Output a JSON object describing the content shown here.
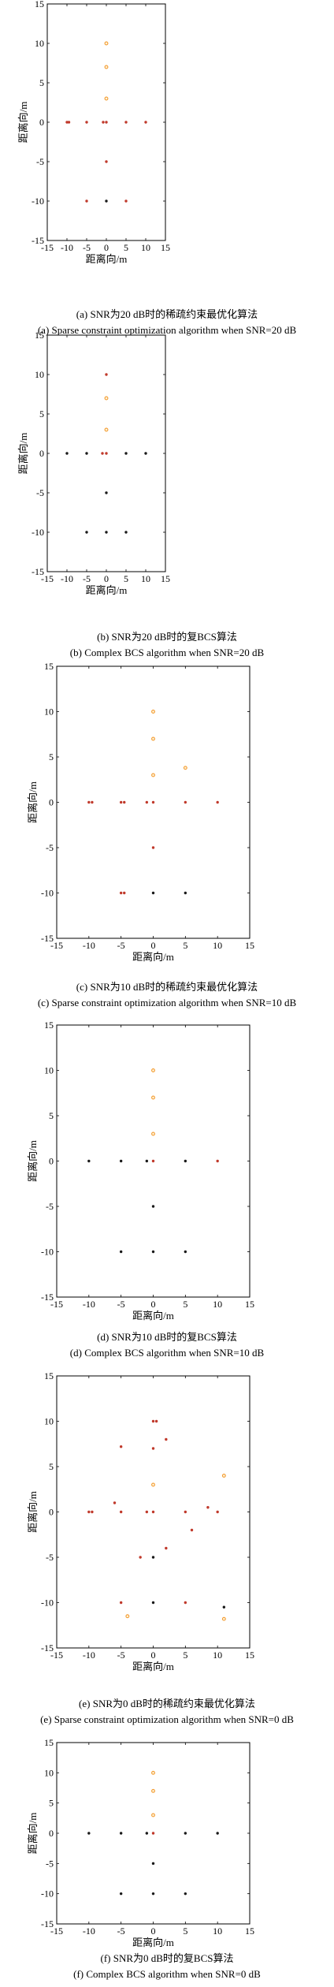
{
  "figure_panels": [
    {
      "caption_cn": "(a) SNR为20 dB时的稀疏约束最优化算法",
      "caption_en": "(a) Sparse constraint optimization algorithm when SNR=20 dB"
    },
    {
      "caption_cn": "(b) SNR为20 dB时的复BCS算法",
      "caption_en": "(b) Complex BCS algorithm when SNR=20 dB"
    },
    {
      "caption_cn": "(c) SNR为10 dB时的稀疏约束最优化算法",
      "caption_en": "(c) Sparse constraint optimization algorithm when SNR=10 dB"
    },
    {
      "caption_cn": "(d) SNR为10 dB时的复BCS算法",
      "caption_en": "(d) Complex BCS algorithm when SNR=10 dB"
    },
    {
      "caption_cn": "(e) SNR为0 dB时的稀疏约束最优化算法",
      "caption_en": "(e) Sparse constraint optimization algorithm when SNR=0 dB"
    },
    {
      "caption_cn": "(f) SNR为0 dB时的复BCS算法",
      "caption_en": "(f) Complex BCS algorithm when SNR=0 dB"
    }
  ],
  "colors": {
    "bright": "#f39c33",
    "mid": "#c0392b",
    "dark": "#1a1a1a",
    "axis": "#000000"
  },
  "chart_data": [
    {
      "type": "scatter",
      "title": "",
      "xlabel": "距离向/m",
      "ylabel": "距离向/m",
      "xlim": [
        -15,
        15
      ],
      "ylim": [
        -15,
        15
      ],
      "xticks": [
        -15,
        -10,
        -5,
        0,
        5,
        10,
        15
      ],
      "yticks": [
        -15,
        -10,
        -5,
        0,
        5,
        10,
        15
      ],
      "grid": false,
      "points": [
        {
          "x": 0,
          "y": 10,
          "level": "bright"
        },
        {
          "x": 0,
          "y": 7,
          "level": "bright"
        },
        {
          "x": 0,
          "y": 3,
          "level": "bright"
        },
        {
          "x": -10,
          "y": 0,
          "level": "mid"
        },
        {
          "x": -9.5,
          "y": 0,
          "level": "mid"
        },
        {
          "x": -5,
          "y": 0,
          "level": "mid"
        },
        {
          "x": -0.8,
          "y": 0,
          "level": "mid"
        },
        {
          "x": 0,
          "y": 0,
          "level": "mid"
        },
        {
          "x": 5,
          "y": 0,
          "level": "mid"
        },
        {
          "x": 10,
          "y": 0,
          "level": "mid"
        },
        {
          "x": 0,
          "y": -5,
          "level": "mid"
        },
        {
          "x": -5,
          "y": -10,
          "level": "mid"
        },
        {
          "x": 0,
          "y": -10,
          "level": "dark"
        },
        {
          "x": 5,
          "y": -10,
          "level": "mid"
        }
      ]
    },
    {
      "type": "scatter",
      "title": "",
      "xlabel": "距离向/m",
      "ylabel": "距离向/m",
      "xlim": [
        -15,
        15
      ],
      "ylim": [
        -15,
        15
      ],
      "xticks": [
        -15,
        -10,
        -5,
        0,
        5,
        10,
        15
      ],
      "yticks": [
        -15,
        -10,
        -5,
        0,
        5,
        10,
        15
      ],
      "grid": false,
      "points": [
        {
          "x": 0,
          "y": 10,
          "level": "mid"
        },
        {
          "x": 0,
          "y": 7,
          "level": "bright"
        },
        {
          "x": 0,
          "y": 3,
          "level": "bright"
        },
        {
          "x": -10,
          "y": 0,
          "level": "dark"
        },
        {
          "x": -5,
          "y": 0,
          "level": "dark"
        },
        {
          "x": -1,
          "y": 0,
          "level": "mid"
        },
        {
          "x": 0,
          "y": 0,
          "level": "mid"
        },
        {
          "x": 5,
          "y": 0,
          "level": "dark"
        },
        {
          "x": 10,
          "y": 0,
          "level": "dark"
        },
        {
          "x": 0,
          "y": -5,
          "level": "dark"
        },
        {
          "x": -5,
          "y": -10,
          "level": "dark"
        },
        {
          "x": 0,
          "y": -10,
          "level": "dark"
        },
        {
          "x": 5,
          "y": -10,
          "level": "dark"
        }
      ]
    },
    {
      "type": "scatter",
      "title": "",
      "xlabel": "距离向/m",
      "ylabel": "距离向/m",
      "xlim": [
        -15,
        15
      ],
      "ylim": [
        -15,
        15
      ],
      "xticks": [
        -15,
        -10,
        -5,
        0,
        5,
        10,
        15
      ],
      "yticks": [
        -15,
        -10,
        -5,
        0,
        5,
        10,
        15
      ],
      "grid": false,
      "points": [
        {
          "x": 0,
          "y": 10,
          "level": "bright"
        },
        {
          "x": 0,
          "y": 7,
          "level": "bright"
        },
        {
          "x": 0,
          "y": 3,
          "level": "bright"
        },
        {
          "x": 5,
          "y": 3.8,
          "level": "bright"
        },
        {
          "x": -10,
          "y": 0,
          "level": "mid"
        },
        {
          "x": -9.5,
          "y": 0,
          "level": "mid"
        },
        {
          "x": -5,
          "y": 0,
          "level": "mid"
        },
        {
          "x": -4.5,
          "y": 0,
          "level": "mid"
        },
        {
          "x": -1,
          "y": 0,
          "level": "mid"
        },
        {
          "x": 0,
          "y": 0,
          "level": "mid"
        },
        {
          "x": 5,
          "y": 0,
          "level": "mid"
        },
        {
          "x": 10,
          "y": 0,
          "level": "mid"
        },
        {
          "x": 0,
          "y": -5,
          "level": "mid"
        },
        {
          "x": -5,
          "y": -10,
          "level": "mid"
        },
        {
          "x": -4.5,
          "y": -10,
          "level": "mid"
        },
        {
          "x": 0,
          "y": -10,
          "level": "dark"
        },
        {
          "x": 5,
          "y": -10,
          "level": "dark"
        }
      ]
    },
    {
      "type": "scatter",
      "title": "",
      "xlabel": "距离向/m",
      "ylabel": "距离向/m",
      "xlim": [
        -15,
        15
      ],
      "ylim": [
        -15,
        15
      ],
      "xticks": [
        -15,
        -10,
        -5,
        0,
        5,
        10,
        15
      ],
      "yticks": [
        -15,
        -10,
        -5,
        0,
        5,
        10,
        15
      ],
      "grid": false,
      "points": [
        {
          "x": 0,
          "y": 10,
          "level": "bright"
        },
        {
          "x": 0,
          "y": 7,
          "level": "bright"
        },
        {
          "x": 0,
          "y": 3,
          "level": "bright"
        },
        {
          "x": -10,
          "y": 0,
          "level": "dark"
        },
        {
          "x": -5,
          "y": 0,
          "level": "dark"
        },
        {
          "x": -1,
          "y": 0,
          "level": "dark"
        },
        {
          "x": 0,
          "y": 0,
          "level": "mid"
        },
        {
          "x": 5,
          "y": 0,
          "level": "dark"
        },
        {
          "x": 10,
          "y": 0,
          "level": "mid"
        },
        {
          "x": 0,
          "y": -5,
          "level": "dark"
        },
        {
          "x": -5,
          "y": -10,
          "level": "dark"
        },
        {
          "x": 0,
          "y": -10,
          "level": "dark"
        },
        {
          "x": 5,
          "y": -10,
          "level": "dark"
        }
      ]
    },
    {
      "type": "scatter",
      "title": "",
      "xlabel": "距离向/m",
      "ylabel": "距离向/m",
      "xlim": [
        -15,
        15
      ],
      "ylim": [
        -15,
        15
      ],
      "xticks": [
        -15,
        -10,
        -5,
        0,
        5,
        10,
        15
      ],
      "yticks": [
        -15,
        -10,
        -5,
        0,
        5,
        10,
        15
      ],
      "grid": false,
      "points": [
        {
          "x": 0,
          "y": 10,
          "level": "mid"
        },
        {
          "x": 0.5,
          "y": 10,
          "level": "mid"
        },
        {
          "x": 0,
          "y": 7,
          "level": "mid"
        },
        {
          "x": 0,
          "y": 3,
          "level": "bright"
        },
        {
          "x": -5,
          "y": 7.2,
          "level": "mid"
        },
        {
          "x": 2,
          "y": 8,
          "level": "mid"
        },
        {
          "x": 11,
          "y": 4,
          "level": "bright"
        },
        {
          "x": -10,
          "y": 0,
          "level": "mid"
        },
        {
          "x": -9.5,
          "y": 0,
          "level": "mid"
        },
        {
          "x": -6,
          "y": 1,
          "level": "mid"
        },
        {
          "x": -5,
          "y": 0,
          "level": "mid"
        },
        {
          "x": -1,
          "y": 0,
          "level": "mid"
        },
        {
          "x": 0,
          "y": 0,
          "level": "mid"
        },
        {
          "x": 5,
          "y": 0,
          "level": "mid"
        },
        {
          "x": 8.5,
          "y": 0.5,
          "level": "mid"
        },
        {
          "x": 10,
          "y": 0,
          "level": "mid"
        },
        {
          "x": 2,
          "y": -4,
          "level": "mid"
        },
        {
          "x": 0,
          "y": -5,
          "level": "dark"
        },
        {
          "x": -2,
          "y": -5,
          "level": "mid"
        },
        {
          "x": -5,
          "y": -10,
          "level": "mid"
        },
        {
          "x": -4,
          "y": -11.5,
          "level": "bright"
        },
        {
          "x": 0,
          "y": -10,
          "level": "dark"
        },
        {
          "x": 5,
          "y": -10,
          "level": "mid"
        },
        {
          "x": 11,
          "y": -10.5,
          "level": "dark"
        },
        {
          "x": 11,
          "y": -11.8,
          "level": "bright"
        },
        {
          "x": 6,
          "y": -2,
          "level": "mid"
        }
      ]
    },
    {
      "type": "scatter",
      "title": "",
      "xlabel": "距离向/m",
      "ylabel": "距离向/m",
      "xlim": [
        -15,
        15
      ],
      "ylim": [
        -15,
        15
      ],
      "xticks": [
        -15,
        -10,
        -5,
        0,
        5,
        10,
        15
      ],
      "yticks": [
        -15,
        -10,
        -5,
        0,
        5,
        10,
        15
      ],
      "grid": false,
      "points": [
        {
          "x": 0,
          "y": 10,
          "level": "bright"
        },
        {
          "x": 0,
          "y": 7,
          "level": "bright"
        },
        {
          "x": 0,
          "y": 3,
          "level": "bright"
        },
        {
          "x": -10,
          "y": 0,
          "level": "dark"
        },
        {
          "x": -5,
          "y": 0,
          "level": "dark"
        },
        {
          "x": -1,
          "y": 0,
          "level": "dark"
        },
        {
          "x": 0,
          "y": 0,
          "level": "mid"
        },
        {
          "x": 5,
          "y": 0,
          "level": "dark"
        },
        {
          "x": 10,
          "y": 0,
          "level": "dark"
        },
        {
          "x": 0,
          "y": -5,
          "level": "dark"
        },
        {
          "x": -5,
          "y": -10,
          "level": "dark"
        },
        {
          "x": 0,
          "y": -10,
          "level": "dark"
        },
        {
          "x": 5,
          "y": -10,
          "level": "dark"
        }
      ]
    }
  ]
}
